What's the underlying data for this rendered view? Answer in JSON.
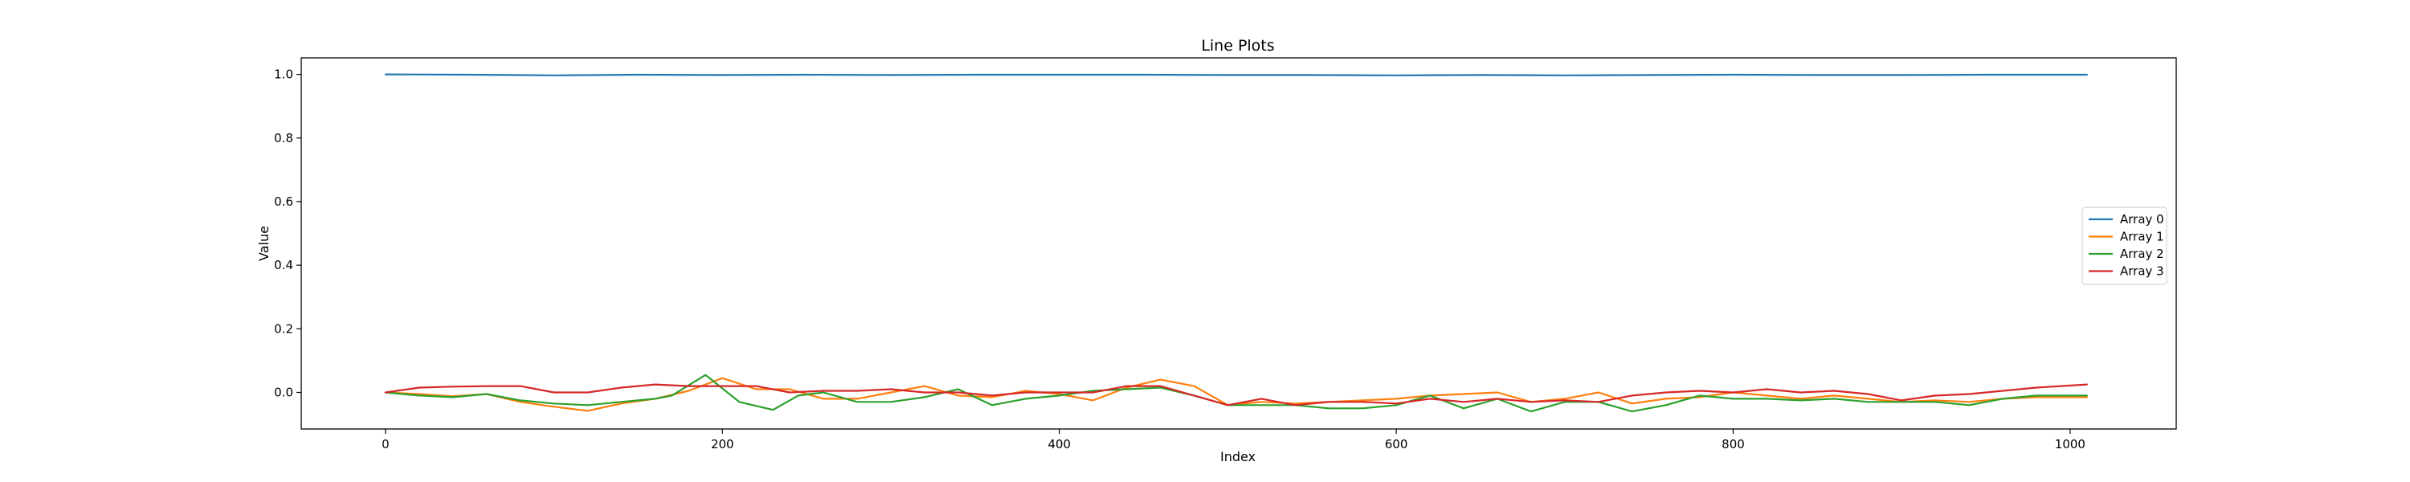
{
  "chart_data": {
    "type": "line",
    "title": "Line Plots",
    "xlabel": "Index",
    "ylabel": "Value",
    "xlim": [
      -50,
      1063
    ],
    "ylim": [
      -0.115,
      1.052
    ],
    "x_ticks": [
      0,
      200,
      400,
      600,
      800,
      1000
    ],
    "y_ticks": [
      0.0,
      0.2,
      0.4,
      0.6,
      0.8,
      1.0
    ],
    "y_tick_labels": [
      "0.0",
      "0.2",
      "0.4",
      "0.6",
      "0.8",
      "1.0"
    ],
    "grid": false,
    "legend_position": "center-right",
    "series": [
      {
        "name": "Array 0",
        "color": "#1f77b4",
        "x": [
          0,
          50,
          100,
          150,
          200,
          250,
          300,
          350,
          400,
          450,
          500,
          550,
          600,
          650,
          700,
          750,
          800,
          850,
          900,
          950,
          1010
        ],
        "y": [
          1.0,
          0.999,
          0.997,
          0.999,
          0.998,
          0.999,
          0.998,
          0.999,
          0.999,
          0.999,
          0.998,
          0.998,
          0.997,
          0.998,
          0.997,
          0.998,
          0.999,
          0.998,
          0.998,
          0.999,
          0.999
        ]
      },
      {
        "name": "Array 1",
        "color": "#ff7f0e",
        "x": [
          0,
          20,
          40,
          60,
          80,
          100,
          120,
          140,
          160,
          180,
          200,
          220,
          240,
          260,
          280,
          300,
          320,
          340,
          360,
          380,
          400,
          420,
          440,
          460,
          480,
          500,
          520,
          540,
          560,
          580,
          600,
          620,
          640,
          660,
          680,
          700,
          720,
          740,
          760,
          780,
          800,
          820,
          840,
          860,
          880,
          900,
          920,
          940,
          960,
          980,
          1010
        ],
        "y": [
          0.0,
          -0.005,
          -0.012,
          -0.005,
          -0.03,
          -0.045,
          -0.058,
          -0.035,
          -0.02,
          0.005,
          0.045,
          0.01,
          0.01,
          -0.02,
          -0.02,
          0.0,
          0.02,
          -0.01,
          -0.015,
          0.005,
          -0.005,
          -0.025,
          0.015,
          0.04,
          0.02,
          -0.04,
          -0.03,
          -0.035,
          -0.03,
          -0.025,
          -0.02,
          -0.01,
          -0.005,
          0.0,
          -0.03,
          -0.02,
          0.0,
          -0.035,
          -0.02,
          -0.015,
          0.0,
          -0.01,
          -0.02,
          -0.01,
          -0.02,
          -0.03,
          -0.025,
          -0.03,
          -0.02,
          -0.015,
          -0.015
        ]
      },
      {
        "name": "Array 2",
        "color": "#2ca02c",
        "x": [
          0,
          20,
          40,
          60,
          80,
          100,
          120,
          140,
          160,
          170,
          190,
          210,
          230,
          245,
          260,
          280,
          300,
          320,
          340,
          360,
          380,
          400,
          420,
          440,
          460,
          480,
          500,
          520,
          540,
          560,
          580,
          600,
          620,
          640,
          660,
          680,
          700,
          720,
          740,
          760,
          780,
          800,
          820,
          840,
          860,
          880,
          900,
          920,
          940,
          960,
          980,
          1010
        ],
        "y": [
          0.0,
          -0.01,
          -0.015,
          -0.005,
          -0.025,
          -0.035,
          -0.04,
          -0.03,
          -0.02,
          -0.01,
          0.055,
          -0.03,
          -0.055,
          -0.01,
          0.0,
          -0.03,
          -0.03,
          -0.015,
          0.01,
          -0.04,
          -0.02,
          -0.01,
          0.005,
          0.01,
          0.015,
          -0.01,
          -0.04,
          -0.04,
          -0.04,
          -0.05,
          -0.05,
          -0.04,
          -0.01,
          -0.05,
          -0.02,
          -0.06,
          -0.03,
          -0.03,
          -0.06,
          -0.04,
          -0.01,
          -0.02,
          -0.02,
          -0.025,
          -0.02,
          -0.03,
          -0.03,
          -0.03,
          -0.04,
          -0.02,
          -0.01,
          -0.01
        ]
      },
      {
        "name": "Array 3",
        "color": "#d62728",
        "x": [
          0,
          20,
          40,
          60,
          80,
          100,
          120,
          140,
          160,
          180,
          200,
          220,
          240,
          260,
          280,
          300,
          320,
          340,
          360,
          380,
          400,
          420,
          440,
          460,
          480,
          500,
          520,
          540,
          560,
          580,
          600,
          620,
          640,
          660,
          680,
          700,
          720,
          740,
          760,
          780,
          800,
          820,
          840,
          860,
          880,
          900,
          920,
          940,
          960,
          980,
          1010
        ],
        "y": [
          0.0,
          0.015,
          0.018,
          0.02,
          0.02,
          0.0,
          0.0,
          0.015,
          0.025,
          0.02,
          0.02,
          0.02,
          0.0,
          0.005,
          0.005,
          0.01,
          0.0,
          0.0,
          -0.01,
          0.0,
          0.0,
          0.0,
          0.02,
          0.02,
          -0.01,
          -0.04,
          -0.02,
          -0.04,
          -0.03,
          -0.03,
          -0.035,
          -0.02,
          -0.03,
          -0.02,
          -0.03,
          -0.025,
          -0.03,
          -0.01,
          0.0,
          0.005,
          0.0,
          0.01,
          0.0,
          0.005,
          -0.005,
          -0.025,
          -0.01,
          -0.005,
          0.005,
          0.015,
          0.025
        ]
      }
    ]
  }
}
